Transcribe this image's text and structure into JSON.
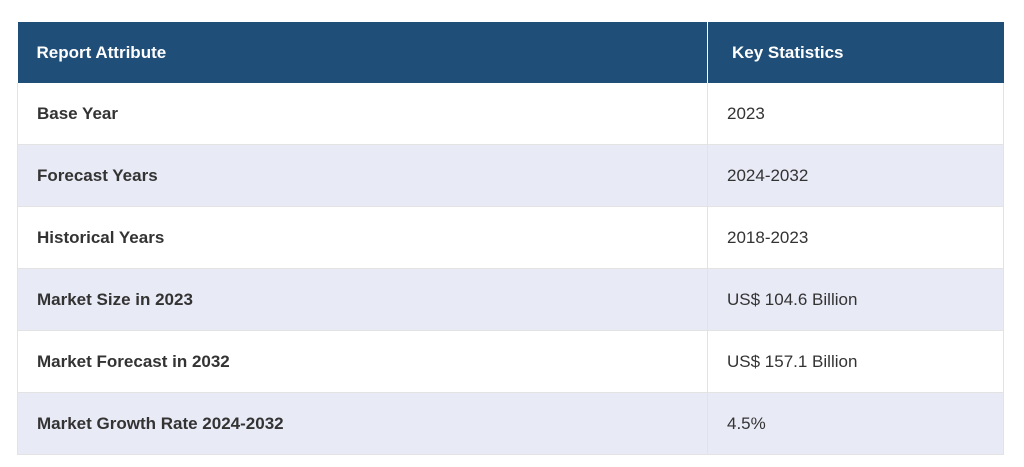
{
  "table": {
    "headers": [
      "Report Attribute",
      "Key Statistics"
    ],
    "rows": [
      [
        "Base Year",
        "2023"
      ],
      [
        "Forecast Years",
        "2024-2032"
      ],
      [
        "Historical Years",
        "2018-2023"
      ],
      [
        "Market Size in 2023",
        "US$ 104.6 Billion"
      ],
      [
        "Market Forecast in 2032",
        "US$ 157.1 Billion"
      ],
      [
        "Market Growth Rate 2024-2032",
        "4.5%"
      ]
    ]
  },
  "colors": {
    "header_bg": "#1f4e79",
    "header_text": "#ffffff",
    "alt_row_bg": "#e8eaf6"
  }
}
